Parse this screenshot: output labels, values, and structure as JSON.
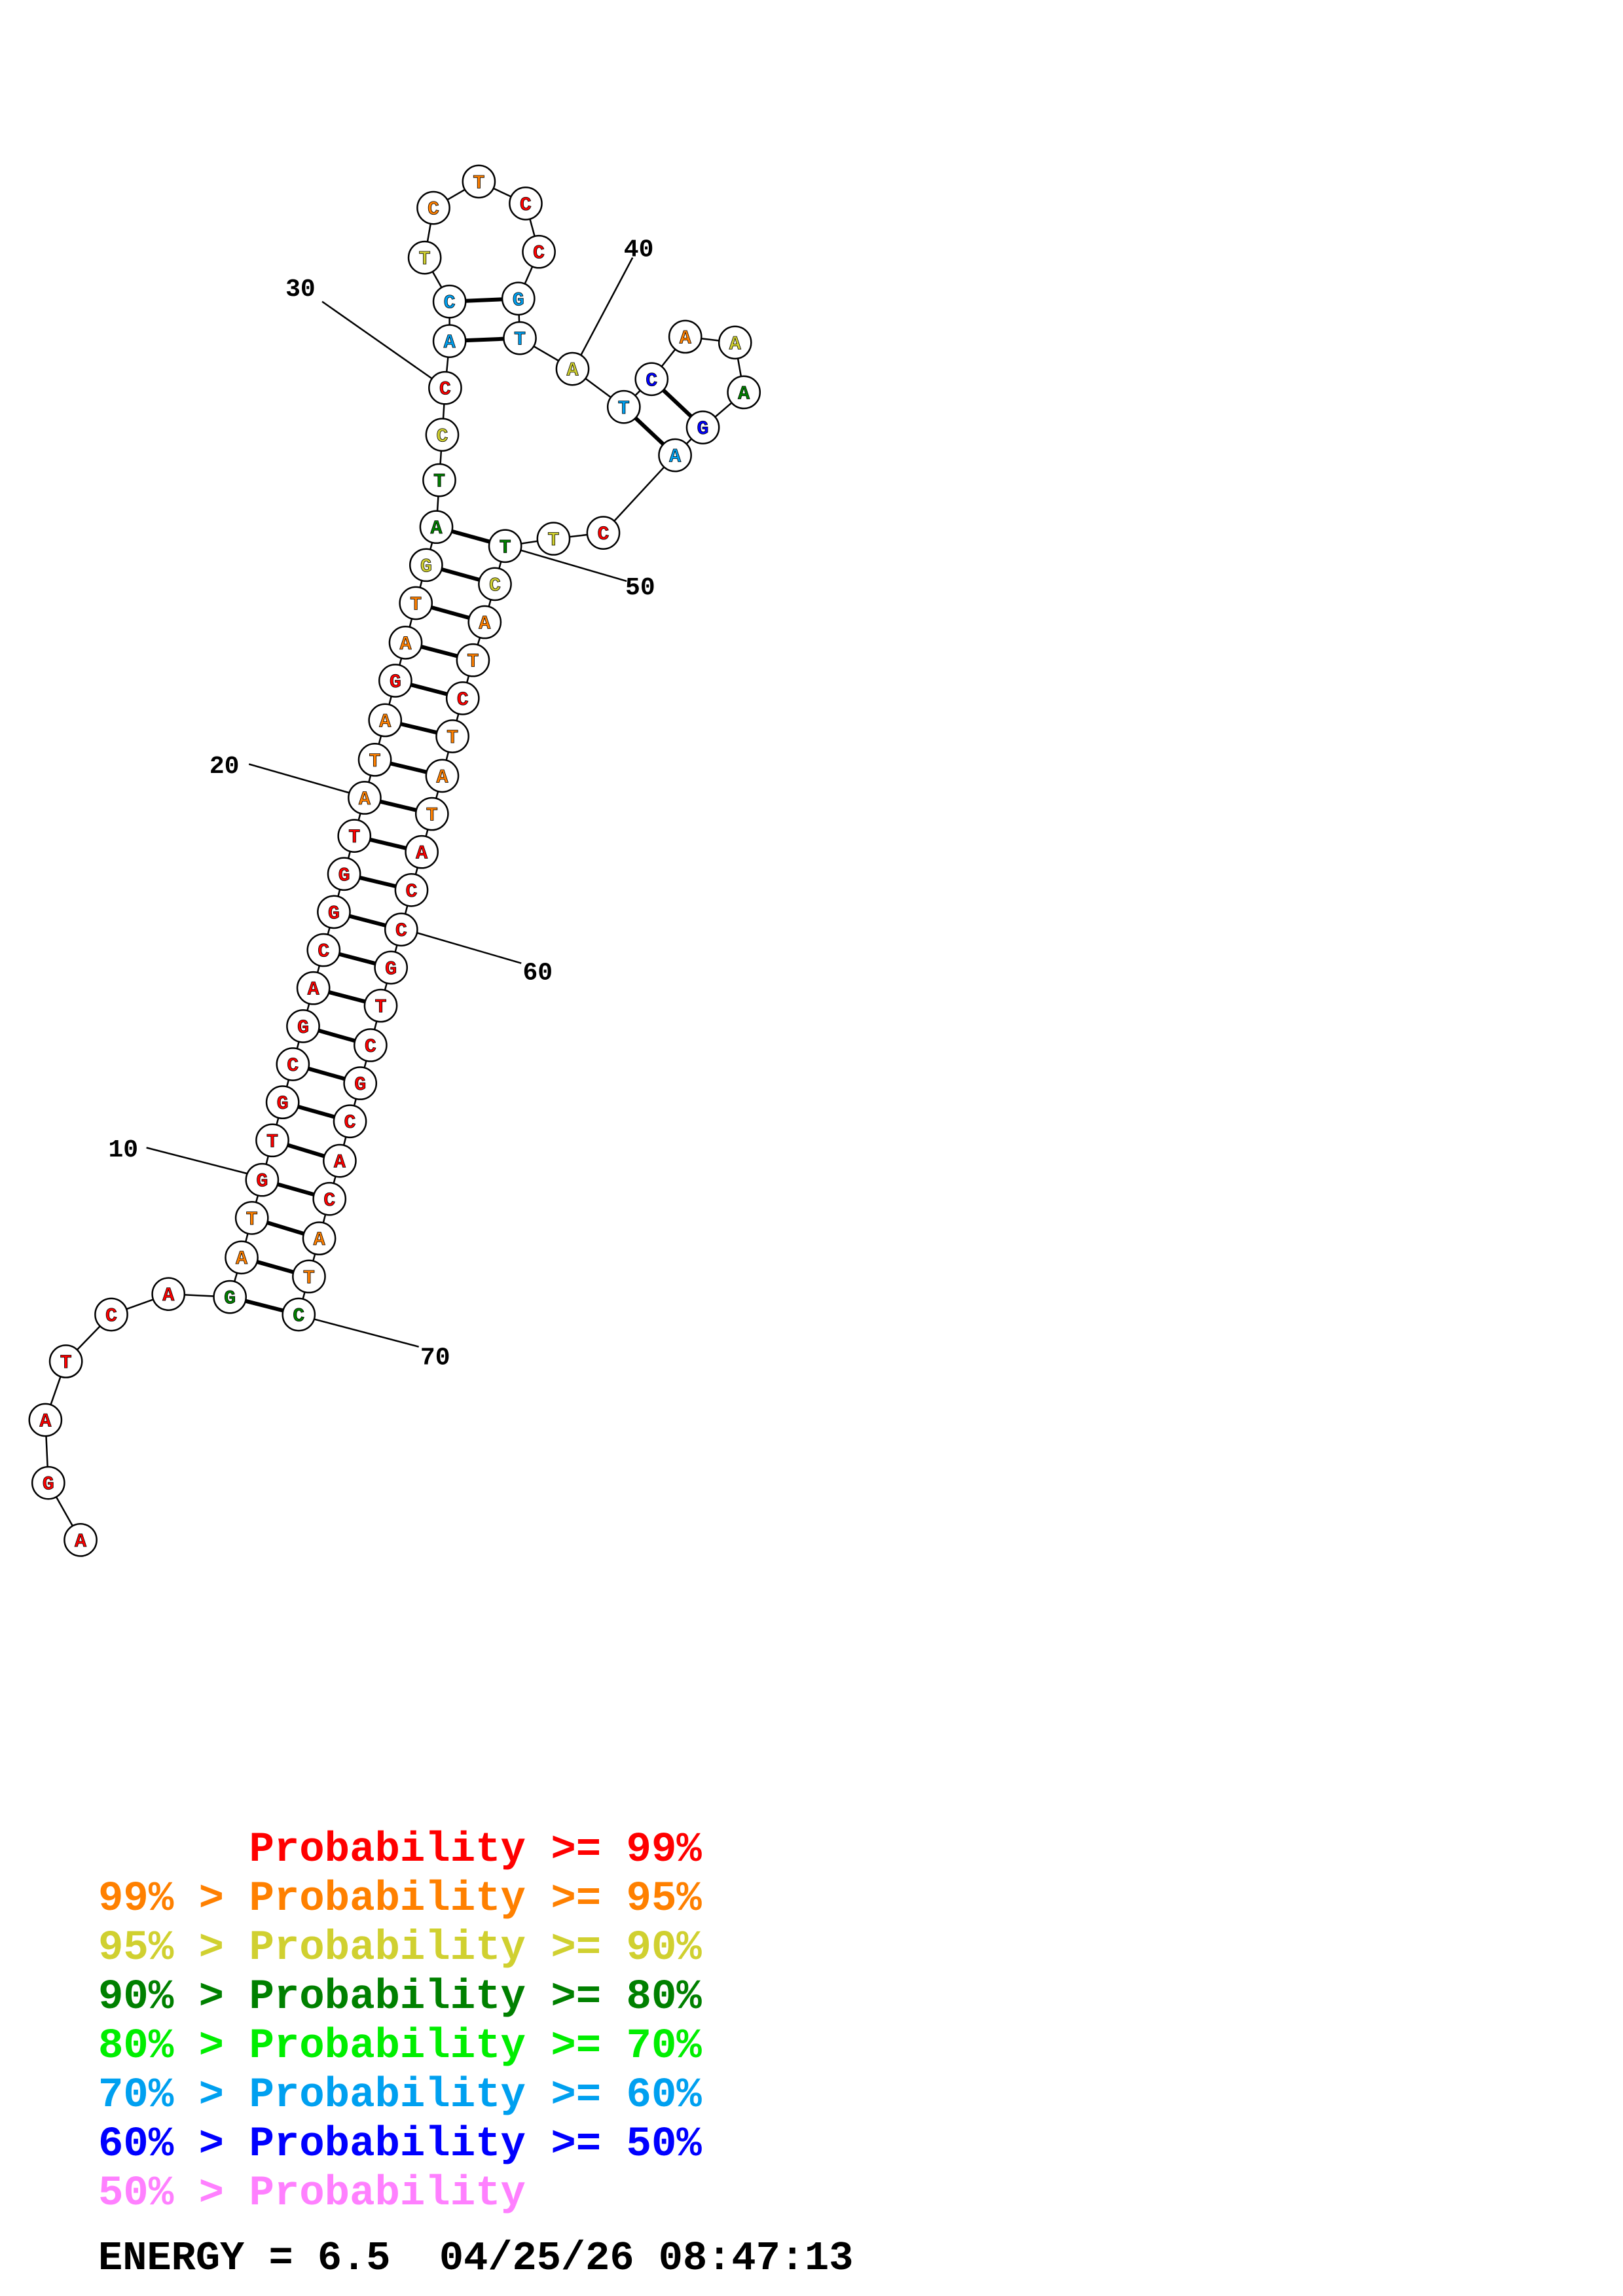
{
  "colors": {
    "p99": "#ff0000",
    "p95": "#ff8000",
    "p90": "#d0d030",
    "p80": "#008000",
    "p70": "#00ee00",
    "p60": "#00a0f0",
    "p50": "#0000ff",
    "plow": "#ff80ff"
  },
  "sequence": [
    {
      "i": 1,
      "b": "A",
      "c": "p99"
    },
    {
      "i": 2,
      "b": "G",
      "c": "p99"
    },
    {
      "i": 3,
      "b": "A",
      "c": "p99"
    },
    {
      "i": 4,
      "b": "T",
      "c": "p99"
    },
    {
      "i": 5,
      "b": "C",
      "c": "p99"
    },
    {
      "i": 6,
      "b": "A",
      "c": "p99"
    },
    {
      "i": 7,
      "b": "G",
      "c": "p80"
    },
    {
      "i": 8,
      "b": "A",
      "c": "p95"
    },
    {
      "i": 9,
      "b": "T",
      "c": "p95"
    },
    {
      "i": 10,
      "b": "G",
      "c": "p99"
    },
    {
      "i": 11,
      "b": "T",
      "c": "p99"
    },
    {
      "i": 12,
      "b": "G",
      "c": "p99"
    },
    {
      "i": 13,
      "b": "C",
      "c": "p99"
    },
    {
      "i": 14,
      "b": "G",
      "c": "p99"
    },
    {
      "i": 15,
      "b": "A",
      "c": "p99"
    },
    {
      "i": 16,
      "b": "C",
      "c": "p99"
    },
    {
      "i": 17,
      "b": "G",
      "c": "p99"
    },
    {
      "i": 18,
      "b": "G",
      "c": "p99"
    },
    {
      "i": 19,
      "b": "T",
      "c": "p99"
    },
    {
      "i": 20,
      "b": "A",
      "c": "p95"
    },
    {
      "i": 21,
      "b": "T",
      "c": "p95"
    },
    {
      "i": 22,
      "b": "A",
      "c": "p95"
    },
    {
      "i": 23,
      "b": "G",
      "c": "p99"
    },
    {
      "i": 24,
      "b": "A",
      "c": "p95"
    },
    {
      "i": 25,
      "b": "T",
      "c": "p95"
    },
    {
      "i": 26,
      "b": "G",
      "c": "p90"
    },
    {
      "i": 27,
      "b": "A",
      "c": "p80"
    },
    {
      "i": 28,
      "b": "T",
      "c": "p80"
    },
    {
      "i": 29,
      "b": "C",
      "c": "p90"
    },
    {
      "i": 30,
      "b": "C",
      "c": "p99"
    },
    {
      "i": 31,
      "b": "A",
      "c": "p60"
    },
    {
      "i": 32,
      "b": "C",
      "c": "p60"
    },
    {
      "i": 33,
      "b": "T",
      "c": "p90"
    },
    {
      "i": 34,
      "b": "C",
      "c": "p95"
    },
    {
      "i": 35,
      "b": "T",
      "c": "p95"
    },
    {
      "i": 36,
      "b": "C",
      "c": "p99"
    },
    {
      "i": 37,
      "b": "C",
      "c": "p99"
    },
    {
      "i": 38,
      "b": "G",
      "c": "p60"
    },
    {
      "i": 39,
      "b": "T",
      "c": "p60"
    },
    {
      "i": 40,
      "b": "A",
      "c": "p90"
    },
    {
      "i": 41,
      "b": "T",
      "c": "p60"
    },
    {
      "i": 42,
      "b": "C",
      "c": "p50"
    },
    {
      "i": 43,
      "b": "A",
      "c": "p95"
    },
    {
      "i": 44,
      "b": "A",
      "c": "p90"
    },
    {
      "i": 45,
      "b": "A",
      "c": "p80"
    },
    {
      "i": 46,
      "b": "G",
      "c": "p50"
    },
    {
      "i": 47,
      "b": "A",
      "c": "p60"
    },
    {
      "i": 48,
      "b": "C",
      "c": "p99"
    },
    {
      "i": 49,
      "b": "T",
      "c": "p90"
    },
    {
      "i": 50,
      "b": "T",
      "c": "p80"
    },
    {
      "i": 51,
      "b": "C",
      "c": "p90"
    },
    {
      "i": 52,
      "b": "A",
      "c": "p95"
    },
    {
      "i": 53,
      "b": "T",
      "c": "p95"
    },
    {
      "i": 54,
      "b": "C",
      "c": "p99"
    },
    {
      "i": 55,
      "b": "T",
      "c": "p95"
    },
    {
      "i": 56,
      "b": "A",
      "c": "p95"
    },
    {
      "i": 57,
      "b": "T",
      "c": "p95"
    },
    {
      "i": 58,
      "b": "A",
      "c": "p99"
    },
    {
      "i": 59,
      "b": "C",
      "c": "p99"
    },
    {
      "i": 60,
      "b": "C",
      "c": "p99"
    },
    {
      "i": 61,
      "b": "G",
      "c": "p99"
    },
    {
      "i": 62,
      "b": "T",
      "c": "p99"
    },
    {
      "i": 63,
      "b": "C",
      "c": "p99"
    },
    {
      "i": 64,
      "b": "G",
      "c": "p99"
    },
    {
      "i": 65,
      "b": "C",
      "c": "p99"
    },
    {
      "i": 66,
      "b": "A",
      "c": "p99"
    },
    {
      "i": 67,
      "b": "C",
      "c": "p99"
    },
    {
      "i": 68,
      "b": "A",
      "c": "p95"
    },
    {
      "i": 69,
      "b": "T",
      "c": "p95"
    },
    {
      "i": 70,
      "b": "C",
      "c": "p80"
    }
  ],
  "pairs": [
    [
      7,
      70
    ],
    [
      8,
      69
    ],
    [
      9,
      68
    ],
    [
      10,
      67
    ],
    [
      11,
      66
    ],
    [
      12,
      65
    ],
    [
      13,
      64
    ],
    [
      14,
      63
    ],
    [
      15,
      62
    ],
    [
      16,
      61
    ],
    [
      17,
      60
    ],
    [
      18,
      59
    ],
    [
      19,
      58
    ],
    [
      20,
      57
    ],
    [
      21,
      56
    ],
    [
      22,
      55
    ],
    [
      23,
      54
    ],
    [
      24,
      53
    ],
    [
      25,
      52
    ],
    [
      26,
      51
    ],
    [
      27,
      50
    ],
    [
      31,
      39
    ],
    [
      32,
      38
    ],
    [
      42,
      46
    ],
    [
      41,
      47
    ]
  ],
  "position_labels": [
    {
      "i": 10,
      "text": "10"
    },
    {
      "i": 20,
      "text": "20"
    },
    {
      "i": 30,
      "text": "30"
    },
    {
      "i": 40,
      "text": "40"
    },
    {
      "i": 50,
      "text": "50"
    },
    {
      "i": 60,
      "text": "60"
    },
    {
      "i": 70,
      "text": "70"
    }
  ],
  "legend": [
    {
      "prefix": "",
      "label": "Probability >= 99%",
      "c": "p99"
    },
    {
      "prefix": "99% > ",
      "label": "Probability >= 95%",
      "c": "p95"
    },
    {
      "prefix": "95% > ",
      "label": "Probability >= 90%",
      "c": "p90"
    },
    {
      "prefix": "90% > ",
      "label": "Probability >= 80%",
      "c": "p80"
    },
    {
      "prefix": "80% > ",
      "label": "Probability >= 70%",
      "c": "p70"
    },
    {
      "prefix": "70% > ",
      "label": "Probability >= 60%",
      "c": "p60"
    },
    {
      "prefix": "60% > ",
      "label": "Probability >= 50%",
      "c": "p50"
    },
    {
      "prefix": "50% > ",
      "label": "Probability",
      "c": "plow"
    }
  ],
  "footer": {
    "energy": "ENERGY = 6.5",
    "datetime": "04/25/26 08:47:13"
  }
}
